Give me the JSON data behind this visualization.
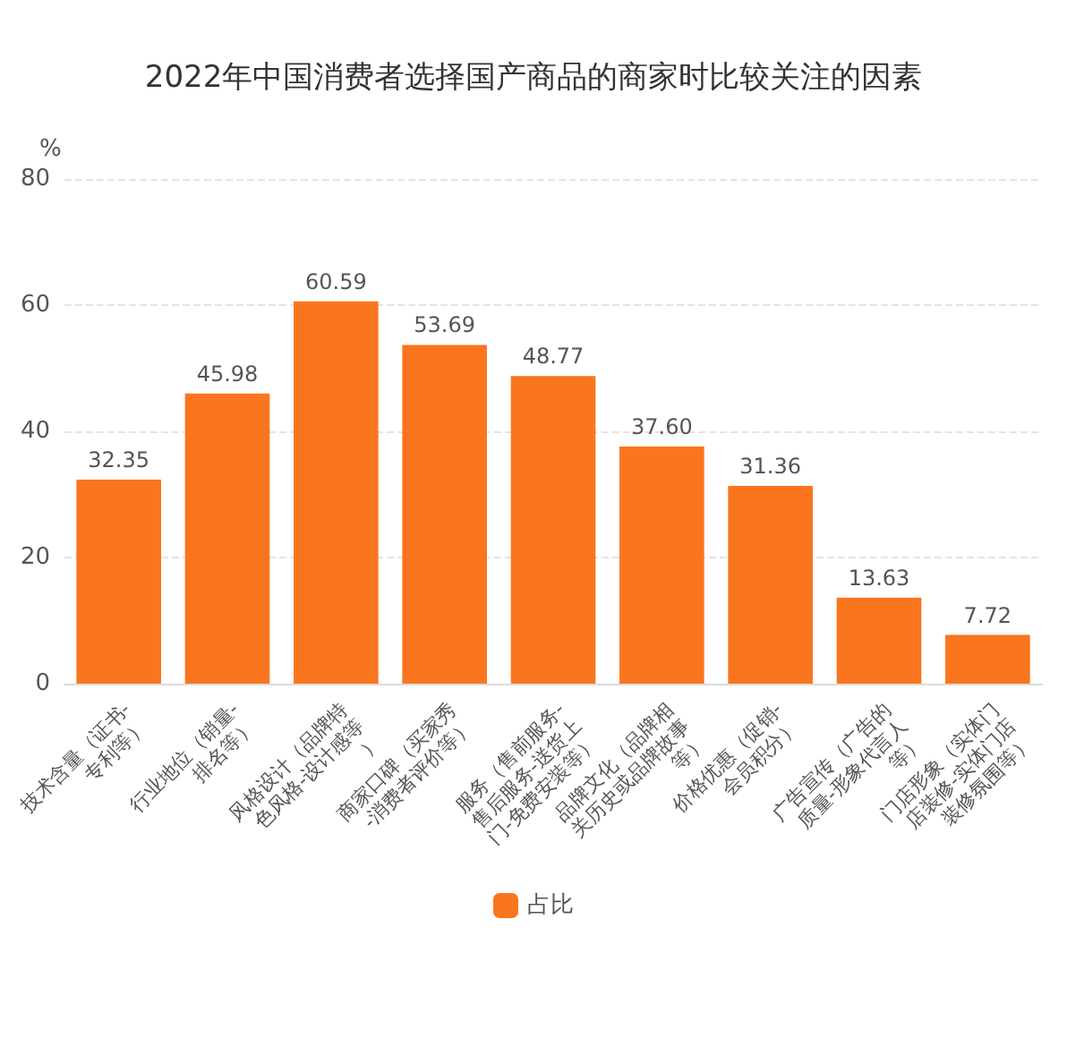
{
  "chart_data": {
    "type": "bar",
    "title": "2022年中国消费者选择国产商品的商家时比较关注的因素",
    "ylabel": "%",
    "categories": [
      "技术含量（证书-专利等）",
      "行业地位（销量-排名等）",
      "风格设计（品牌特色风格-设计感等）",
      "商家口碑（买家秀-消费者评价等）",
      "服务（售前服务-售后服务-送货上门-免费安装等）",
      "品牌文化（品牌相关历史或品牌故事等）",
      "价格优惠（促销-会员积分）",
      "广告宣传（广告的质量-形象代言人等）",
      "门店形象（实体门店装修-实体门店装修氛围等）"
    ],
    "series": [
      {
        "name": "占比",
        "color": "#fa761e",
        "values": [
          32.35,
          45.98,
          60.59,
          53.69,
          48.77,
          37.6,
          31.36,
          13.63,
          7.72
        ],
        "value_labels": [
          "32.35",
          "45.98",
          "60.59",
          "53.69",
          "48.77",
          "37.60",
          "31.36",
          "13.63",
          "7.72"
        ]
      }
    ],
    "ylim": [
      0,
      80
    ],
    "yticks": [
      0,
      20,
      40,
      60,
      80
    ],
    "grid": "y",
    "legend": "bottom"
  }
}
